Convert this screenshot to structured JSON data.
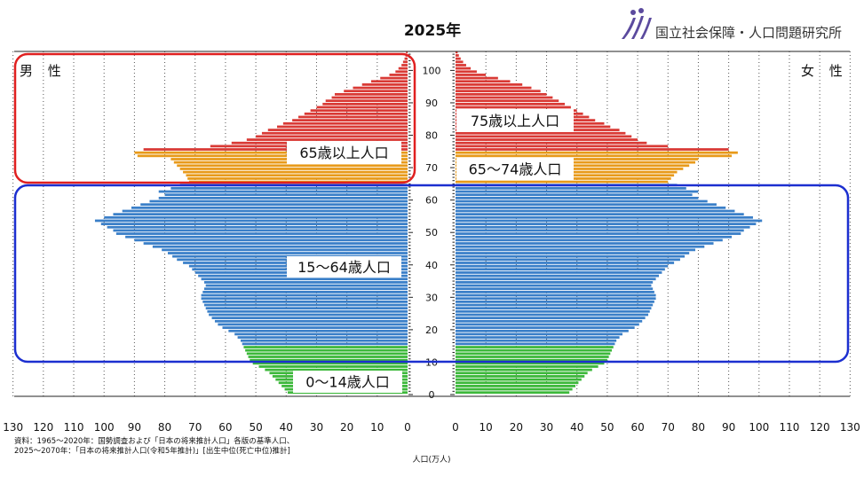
{
  "chart_data": {
    "type": "bar",
    "subtype": "population-pyramid",
    "title": "2025年",
    "organization": "国立社会保障・人口問題研究所",
    "xlabel": "人口(万人)",
    "ylabel": "",
    "side_labels": {
      "left": "男 性",
      "right": "女 性"
    },
    "x_ticks": [
      130,
      120,
      110,
      100,
      90,
      80,
      70,
      60,
      50,
      40,
      30,
      20,
      10,
      0
    ],
    "xlim": [
      0,
      130
    ],
    "age_ticks": [
      0,
      10,
      20,
      30,
      40,
      50,
      60,
      70,
      80,
      90,
      100
    ],
    "age_range": [
      0,
      105
    ],
    "source": [
      "資料：1965～2020年：国勢調査および「日本の将来推計人口」各版の基準人口、",
      "2025～2070年：「日本の将来推計人口(令和5年推計)」[出生中位(死亡中位)推計]"
    ],
    "age_groups": [
      {
        "name": "0～14歳人口",
        "from": 0,
        "to": 14,
        "color": "#3cb83a"
      },
      {
        "name": "15～64歳人口",
        "from": 15,
        "to": 64,
        "color": "#3a7fc8"
      },
      {
        "name": "65～74歳人口",
        "from": 65,
        "to": 74,
        "color": "#e89a1a"
      },
      {
        "name": "75歳以上人口",
        "from": 75,
        "to": 105,
        "color": "#d93a35"
      }
    ],
    "group_labels": [
      "65歳以上人口",
      "75歳以上人口",
      "65～74歳人口",
      "15～64歳人口",
      "0～14歳人口"
    ],
    "series": [
      {
        "name": "男 性",
        "values": [
          39.5,
          40.5,
          41.5,
          42.5,
          43.5,
          44.5,
          45.5,
          47,
          49,
          51,
          52,
          52.5,
          53,
          53.5,
          54,
          54.5,
          55,
          56,
          57,
          59,
          61,
          62.5,
          63.5,
          64.5,
          65.5,
          66,
          66.5,
          67,
          67.5,
          68,
          68,
          67.5,
          67,
          66.5,
          67,
          68,
          69,
          70,
          71,
          72,
          74,
          76,
          77.5,
          79,
          81,
          84,
          87,
          90,
          93,
          96,
          97,
          99,
          101,
          103,
          100,
          97,
          94,
          91,
          88,
          85,
          82,
          80,
          82,
          78,
          75,
          72,
          72.5,
          73,
          74,
          75,
          76,
          77,
          78,
          89,
          90,
          87,
          65,
          58,
          53,
          50,
          48,
          46,
          43,
          41,
          38,
          36,
          34,
          32,
          30,
          28,
          27,
          25,
          24,
          21,
          18,
          15,
          12,
          9,
          6,
          4,
          3,
          2,
          1.5,
          1,
          0.7,
          0.5
        ]
      },
      {
        "name": "女 性",
        "values": [
          37.5,
          38.5,
          39.5,
          40.5,
          41.5,
          42.5,
          43.5,
          45,
          47,
          49,
          50,
          50.5,
          51,
          51.5,
          52,
          52.5,
          53,
          54,
          55,
          57,
          59,
          60.5,
          61.5,
          62.5,
          63.5,
          64,
          64.5,
          65,
          65.5,
          66,
          66,
          65.5,
          65,
          64.5,
          65,
          66,
          67,
          68,
          69,
          70,
          72,
          74,
          75.5,
          77,
          79,
          82,
          85,
          88,
          91,
          94,
          95,
          97,
          99,
          101,
          98,
          95,
          92,
          89,
          86,
          83,
          80,
          78,
          80,
          76,
          73,
          70,
          71,
          72,
          73,
          75,
          77,
          79,
          80,
          91,
          93,
          90,
          70,
          63,
          60,
          58,
          56,
          54,
          51,
          49,
          46,
          44,
          42,
          40,
          38,
          36,
          34,
          32,
          30,
          28,
          25,
          22,
          18,
          14,
          10,
          7,
          5,
          3.5,
          2.5,
          1.7,
          1.1,
          0.7
        ]
      }
    ],
    "grid": true,
    "highlight_boxes": [
      {
        "label": "65歳以上人口",
        "side": "男 性",
        "color": "#e02020"
      },
      {
        "label": "15～64歳人口",
        "side": "both",
        "color": "#1c2fd0"
      }
    ]
  }
}
